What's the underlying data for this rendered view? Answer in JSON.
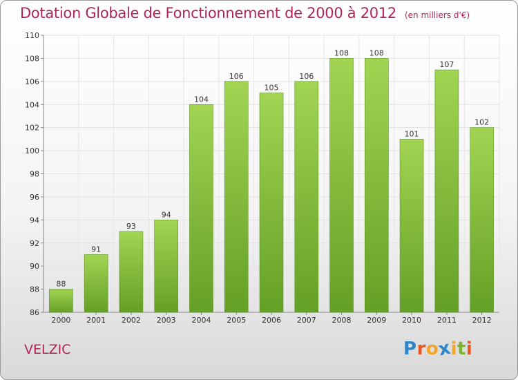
{
  "header": {
    "title": "Dotation Globale de Fonctionnement de 2000 à 2012",
    "subtitle": "(en milliers d'€)"
  },
  "footer": {
    "commune": "VELZIC",
    "logo": [
      "P",
      "r",
      "o",
      "x",
      "i",
      "t",
      "i"
    ]
  },
  "colors": {
    "title": "#b0245a",
    "bar_light": "#9ccf4c",
    "bar_dark": "#6aa32a",
    "logo": [
      "#2a86c8",
      "#e8561e",
      "#f2a52a",
      "#2a86c8",
      "#f2a52a",
      "#7bb32e",
      "#e8561e"
    ]
  },
  "chart_data": {
    "type": "bar",
    "title": "Dotation Globale de Fonctionnement de 2000 à 2012",
    "subtitle": "(en milliers d'€)",
    "categories": [
      "2000",
      "2001",
      "2002",
      "2003",
      "2004",
      "2005",
      "2006",
      "2007",
      "2008",
      "2009",
      "2010",
      "2011",
      "2012"
    ],
    "values": [
      88,
      91,
      93,
      94,
      104,
      106,
      105,
      106,
      108,
      108,
      101,
      107,
      102
    ],
    "ylim": [
      86,
      110
    ],
    "yticks": [
      86,
      88,
      90,
      92,
      94,
      96,
      98,
      100,
      102,
      104,
      106,
      108,
      110
    ],
    "grid": true,
    "data_labels": true
  }
}
